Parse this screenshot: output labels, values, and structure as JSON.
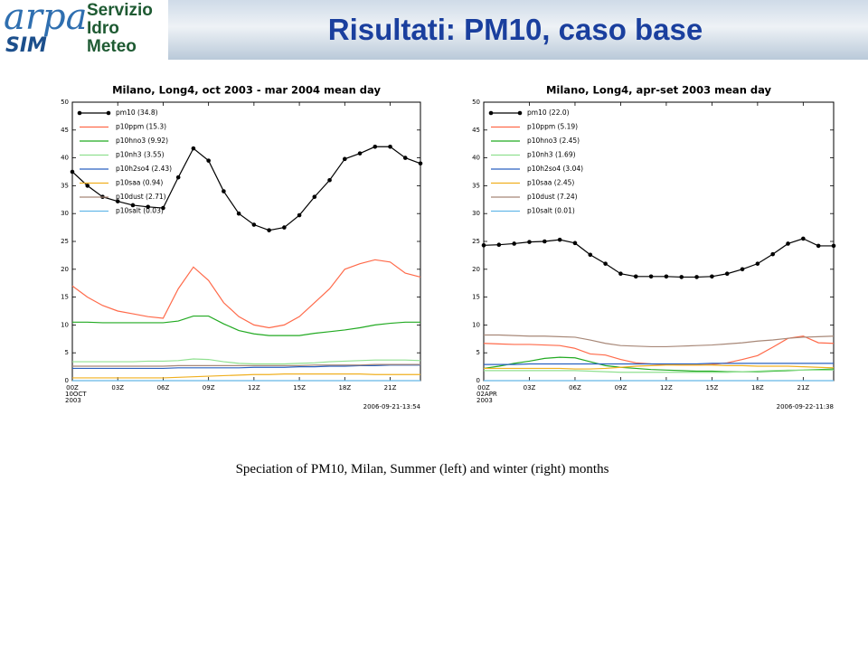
{
  "header": {
    "logo": "arpa",
    "logo_sub": "SIM",
    "org": [
      "Servizio",
      "Idro",
      "Meteo"
    ],
    "title": "Risultati: PM10, caso base"
  },
  "chart_data": [
    {
      "type": "line",
      "title": "Milano, Long4, oct 2003 - mar 2004 mean day",
      "x": [
        0,
        1,
        2,
        3,
        4,
        5,
        6,
        7,
        8,
        9,
        10,
        11,
        12,
        13,
        14,
        15,
        16,
        17,
        18,
        19,
        20,
        21,
        22,
        23
      ],
      "xlim": [
        0,
        23
      ],
      "xticks": [
        {
          "value": 0,
          "label": "00Z"
        },
        {
          "value": 3,
          "label": "03Z"
        },
        {
          "value": 6,
          "label": "06Z"
        },
        {
          "value": 9,
          "label": "09Z"
        },
        {
          "value": 12,
          "label": "12Z"
        },
        {
          "value": 15,
          "label": "15Z"
        },
        {
          "value": 18,
          "label": "18Z"
        },
        {
          "value": 21,
          "label": "21Z"
        }
      ],
      "start_label": [
        "10OCT",
        "2003"
      ],
      "timestamp": "2006-09-21-13:54",
      "ylim": [
        0,
        50
      ],
      "yticks": [
        0,
        5,
        10,
        15,
        20,
        25,
        30,
        35,
        40,
        45,
        50
      ],
      "grid": false,
      "legend": "upper left",
      "series": [
        {
          "name": "pm10 (34.8)",
          "color": "#000000",
          "marker": true,
          "values": [
            37.5,
            35,
            33,
            32.2,
            31.5,
            31.2,
            31,
            36.5,
            41.7,
            39.5,
            34,
            30,
            28,
            27,
            27.5,
            29.7,
            33,
            36,
            39.8,
            40.8,
            42,
            42,
            40,
            39
          ]
        },
        {
          "name": "p10ppm (15.3)",
          "color": "#ff6a4a",
          "values": [
            17,
            15,
            13.5,
            12.5,
            12,
            11.5,
            11.2,
            16.5,
            20.4,
            18,
            14,
            11.5,
            10,
            9.5,
            10,
            11.5,
            14,
            16.5,
            20,
            21,
            21.7,
            21.3,
            19.3,
            18.6
          ]
        },
        {
          "name": "p10hno3 (9.92)",
          "color": "#22aa22",
          "values": [
            10.5,
            10.5,
            10.4,
            10.4,
            10.4,
            10.4,
            10.4,
            10.7,
            11.6,
            11.6,
            10.2,
            9,
            8.4,
            8.1,
            8.1,
            8.1,
            8.5,
            8.8,
            9.1,
            9.5,
            10,
            10.3,
            10.5,
            10.5
          ]
        },
        {
          "name": "p10nh3 (3.55)",
          "color": "#90e090",
          "values": [
            3.4,
            3.4,
            3.4,
            3.4,
            3.4,
            3.5,
            3.5,
            3.6,
            3.9,
            3.8,
            3.4,
            3.1,
            3,
            3,
            3,
            3.1,
            3.2,
            3.4,
            3.5,
            3.6,
            3.7,
            3.7,
            3.7,
            3.6
          ]
        },
        {
          "name": "p10h2so4 (2.43)",
          "color": "#2a62c0",
          "values": [
            2.2,
            2.2,
            2.2,
            2.2,
            2.2,
            2.2,
            2.2,
            2.3,
            2.3,
            2.3,
            2.3,
            2.3,
            2.4,
            2.4,
            2.4,
            2.5,
            2.5,
            2.6,
            2.6,
            2.7,
            2.7,
            2.8,
            2.8,
            2.8
          ]
        },
        {
          "name": "p10saa (0.94)",
          "color": "#f0b020",
          "values": [
            0.5,
            0.5,
            0.5,
            0.5,
            0.5,
            0.5,
            0.5,
            0.6,
            0.7,
            0.8,
            0.9,
            1,
            1.1,
            1.1,
            1.2,
            1.2,
            1.2,
            1.2,
            1.2,
            1.2,
            1.1,
            1.1,
            1.1,
            1.1
          ]
        },
        {
          "name": "p10dust (2.71)",
          "color": "#a88878",
          "values": [
            2.6,
            2.6,
            2.6,
            2.6,
            2.6,
            2.6,
            2.6,
            2.7,
            2.7,
            2.7,
            2.7,
            2.7,
            2.7,
            2.7,
            2.7,
            2.7,
            2.8,
            2.8,
            2.8,
            2.8,
            2.9,
            2.9,
            2.9,
            2.9
          ]
        },
        {
          "name": "p10salt (0.03)",
          "color": "#66b8e8",
          "values": [
            0,
            0,
            0,
            0,
            0,
            0,
            0,
            0,
            0,
            0,
            0,
            0,
            0,
            0,
            0,
            0,
            0,
            0,
            0,
            0,
            0,
            0,
            0,
            0
          ]
        }
      ]
    },
    {
      "type": "line",
      "title": "Milano, Long4, apr-set 2003 mean day",
      "x": [
        0,
        1,
        2,
        3,
        4,
        5,
        6,
        7,
        8,
        9,
        10,
        11,
        12,
        13,
        14,
        15,
        16,
        17,
        18,
        19,
        20,
        21,
        22,
        23
      ],
      "xlim": [
        0,
        23
      ],
      "xticks": [
        {
          "value": 0,
          "label": "00Z"
        },
        {
          "value": 3,
          "label": "03Z"
        },
        {
          "value": 6,
          "label": "06Z"
        },
        {
          "value": 9,
          "label": "09Z"
        },
        {
          "value": 12,
          "label": "12Z"
        },
        {
          "value": 15,
          "label": "15Z"
        },
        {
          "value": 18,
          "label": "18Z"
        },
        {
          "value": 21,
          "label": "21Z"
        }
      ],
      "start_label": [
        "02APR",
        "2003"
      ],
      "timestamp": "2006-09-22-11:38",
      "ylim": [
        0,
        50
      ],
      "yticks": [
        0,
        5,
        10,
        15,
        20,
        25,
        30,
        35,
        40,
        45,
        50
      ],
      "grid": false,
      "legend": "upper left",
      "series": [
        {
          "name": "pm10 (22.0)",
          "color": "#000000",
          "marker": true,
          "values": [
            24.3,
            24.4,
            24.6,
            24.9,
            25,
            25.3,
            24.7,
            22.6,
            21,
            19.2,
            18.7,
            18.7,
            18.7,
            18.6,
            18.6,
            18.7,
            19.2,
            20,
            21,
            22.7,
            24.6,
            25.5,
            24.2,
            24.2
          ]
        },
        {
          "name": "p10ppm (5.19)",
          "color": "#ff6a4a",
          "values": [
            6.7,
            6.6,
            6.5,
            6.5,
            6.4,
            6.3,
            5.8,
            4.8,
            4.6,
            3.8,
            3.2,
            3,
            2.9,
            2.8,
            2.8,
            2.9,
            3.2,
            3.8,
            4.5,
            6,
            7.6,
            8,
            6.8,
            6.7
          ]
        },
        {
          "name": "p10hno3 (2.45)",
          "color": "#22aa22",
          "values": [
            2.2,
            2.6,
            3.1,
            3.5,
            4,
            4.2,
            4.1,
            3.4,
            2.7,
            2.4,
            2.2,
            2,
            1.9,
            1.8,
            1.7,
            1.7,
            1.6,
            1.6,
            1.6,
            1.7,
            1.8,
            1.9,
            2,
            2.1
          ]
        },
        {
          "name": "p10nh3 (1.69)",
          "color": "#90e090",
          "values": [
            1.8,
            1.8,
            1.8,
            1.8,
            1.8,
            1.8,
            1.8,
            1.7,
            1.6,
            1.5,
            1.5,
            1.5,
            1.5,
            1.5,
            1.5,
            1.5,
            1.5,
            1.6,
            1.7,
            1.8,
            1.9,
            1.9,
            1.9,
            1.9
          ]
        },
        {
          "name": "p10h2so4 (3.04)",
          "color": "#2a62c0",
          "values": [
            2.9,
            2.9,
            2.9,
            3,
            3,
            3,
            3,
            3,
            3,
            3,
            3,
            3,
            3,
            3,
            3,
            3.1,
            3.1,
            3.1,
            3.1,
            3.1,
            3.1,
            3.1,
            3.1,
            3.1
          ]
        },
        {
          "name": "p10saa (2.45)",
          "color": "#f0b020",
          "values": [
            2.2,
            2.2,
            2.2,
            2.2,
            2.2,
            2.2,
            2.1,
            2.1,
            2.2,
            2.4,
            2.6,
            2.7,
            2.8,
            2.8,
            2.8,
            2.8,
            2.7,
            2.7,
            2.6,
            2.6,
            2.6,
            2.5,
            2.4,
            2.3
          ]
        },
        {
          "name": "p10dust (7.24)",
          "color": "#a88878",
          "values": [
            8.2,
            8.2,
            8.1,
            8,
            8,
            7.9,
            7.8,
            7.3,
            6.7,
            6.3,
            6.2,
            6.1,
            6.1,
            6.2,
            6.3,
            6.4,
            6.6,
            6.8,
            7.1,
            7.3,
            7.6,
            7.8,
            7.9,
            8
          ]
        },
        {
          "name": "p10salt (0.01)",
          "color": "#66b8e8",
          "values": [
            0,
            0,
            0,
            0,
            0,
            0,
            0,
            0,
            0,
            0,
            0,
            0,
            0,
            0,
            0,
            0,
            0,
            0,
            0,
            0,
            0,
            0,
            0,
            0
          ]
        }
      ]
    }
  ],
  "caption": "Speciation of PM10, Milan, Summer (left) and winter (right) months"
}
